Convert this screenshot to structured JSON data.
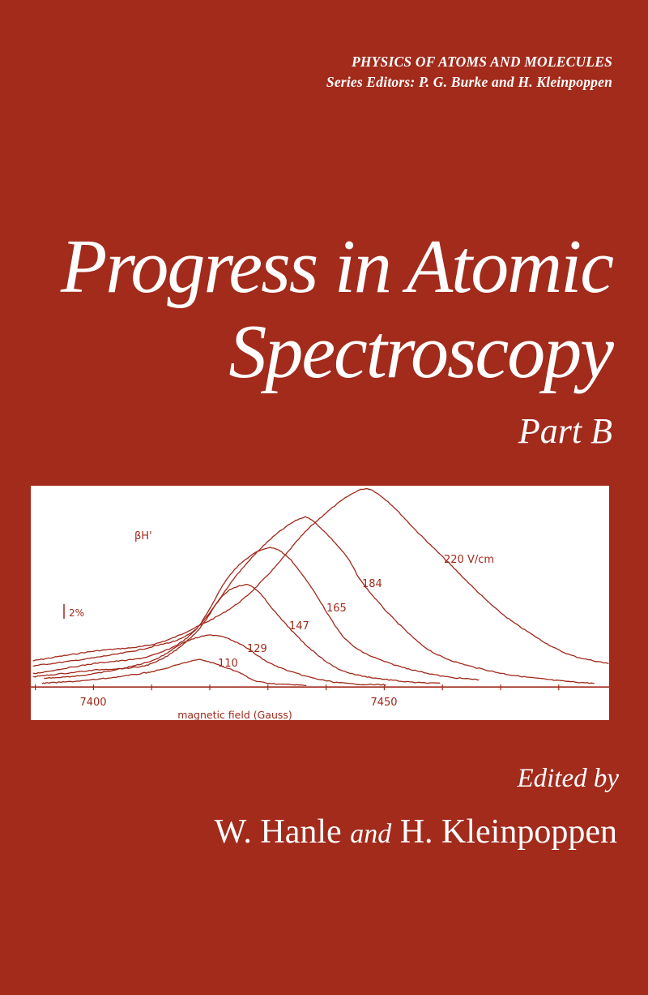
{
  "series_header": {
    "line1": "PHYSICS OF ATOMS AND MOLECULES",
    "line2": "Series Editors: P. G. Burke and H. Kleinpoppen"
  },
  "title": {
    "line1": "Progress in Atomic",
    "line2": "Spectroscopy",
    "part": "Part B"
  },
  "editors": {
    "edited_by": "Edited by",
    "editor1": "W. Hanle",
    "and": "and",
    "editor2": "H. Kleinpoppen"
  },
  "colors": {
    "background": "#a22b1c",
    "figure_ink": "#a0281a",
    "figure_background": "#ffffff",
    "text": "#ffffff"
  },
  "chart_data": {
    "type": "line",
    "xlabel": "magnetic field (Gauss)",
    "ylabel": "βH'",
    "scale_bar_label": "2%",
    "scale_bar_value": 2,
    "xlim": [
      7389.5,
      7488.7
    ],
    "ylim": [
      -0.8,
      26.7
    ],
    "x_ticks": [
      7400,
      7450
    ],
    "x_minor_tick_step": 10,
    "grid": false,
    "series": [
      {
        "name": "220 V/cm",
        "points": [
          [
            7389.6,
            2.8
          ],
          [
            7400,
            4.1
          ],
          [
            7410,
            5.0
          ],
          [
            7417.4,
            7.3
          ],
          [
            7424.7,
            10.6
          ],
          [
            7430.5,
            15.0
          ],
          [
            7437.5,
            21.3
          ],
          [
            7445.5,
            26.1
          ],
          [
            7449.7,
            25.2
          ],
          [
            7456,
            20.2
          ],
          [
            7460.2,
            16.9
          ],
          [
            7468.8,
            10.2
          ],
          [
            7475.2,
            6.5
          ],
          [
            7481.6,
            3.7
          ],
          [
            7488.6,
            2.4
          ]
        ]
      },
      {
        "name": "184",
        "points": [
          [
            7389.6,
            2.1
          ],
          [
            7400,
            3.2
          ],
          [
            7410,
            4.7
          ],
          [
            7417.4,
            7.0
          ],
          [
            7424.7,
            14.6
          ],
          [
            7430.5,
            19.5
          ],
          [
            7435.6,
            22.3
          ],
          [
            7438.1,
            21.7
          ],
          [
            7443.3,
            17.3
          ],
          [
            7446.5,
            13.2
          ],
          [
            7452.8,
            7.6
          ],
          [
            7459.2,
            3.6
          ],
          [
            7468.8,
            1.3
          ],
          [
            7478.4,
            0.2
          ],
          [
            7486.1,
            -0.3
          ]
        ]
      },
      {
        "name": "165",
        "points": [
          [
            7389.6,
            1.0
          ],
          [
            7400,
            2.4
          ],
          [
            7410,
            3.5
          ],
          [
            7417.4,
            6.9
          ],
          [
            7423.5,
            14.6
          ],
          [
            7429.2,
            18.1
          ],
          [
            7433,
            17.3
          ],
          [
            7437.5,
            12.8
          ],
          [
            7443.3,
            5.8
          ],
          [
            7449.7,
            2.8
          ],
          [
            7459.2,
            0.8
          ],
          [
            7466.3,
            0.2
          ]
        ]
      },
      {
        "name": "147",
        "points": [
          [
            7389.6,
            0.6
          ],
          [
            7400,
            1.5
          ],
          [
            7410,
            2.4
          ],
          [
            7417.4,
            6.5
          ],
          [
            7422.2,
            11.7
          ],
          [
            7425.4,
            13.1
          ],
          [
            7427.9,
            12.6
          ],
          [
            7432.4,
            8.4
          ],
          [
            7437.5,
            4.3
          ],
          [
            7443.3,
            1.3
          ],
          [
            7452.8,
            0.0
          ],
          [
            7459.6,
            -0.3
          ]
        ]
      },
      {
        "name": "129",
        "points": [
          [
            7391.5,
            0.4
          ],
          [
            7400,
            1.0
          ],
          [
            7410,
            2.8
          ],
          [
            7415.8,
            5.4
          ],
          [
            7420.9,
            6.3
          ],
          [
            7425.4,
            5.0
          ],
          [
            7430.5,
            2.4
          ],
          [
            7436.9,
            0.6
          ],
          [
            7443.3,
            -0.3
          ],
          [
            7450.3,
            -0.5
          ]
        ]
      },
      {
        "name": "110",
        "points": [
          [
            7391.2,
            -0.3
          ],
          [
            7400,
            0.2
          ],
          [
            7410,
            1.3
          ],
          [
            7417.1,
            2.8
          ],
          [
            7419.6,
            2.7
          ],
          [
            7424.7,
            1.3
          ],
          [
            7428.6,
            -0.1
          ],
          [
            7436.6,
            -0.6
          ]
        ]
      }
    ]
  }
}
